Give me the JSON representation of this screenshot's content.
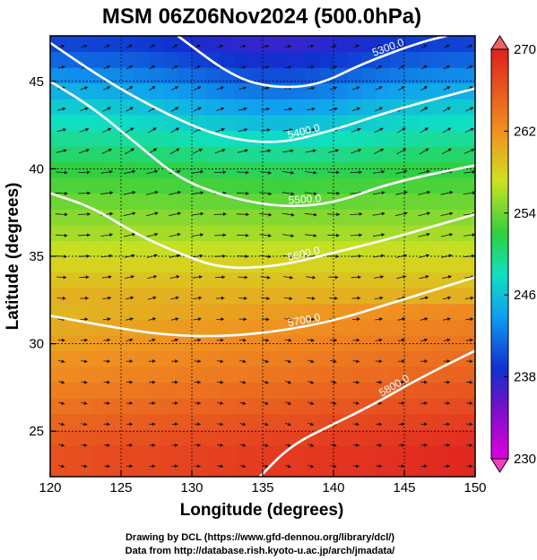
{
  "chart_data": {
    "type": "heatmap",
    "title": "MSM 06Z06Nov2024 (500.0hPa)",
    "xlabel": "Longitude (degrees)",
    "ylabel": "Latitude  (degrees)",
    "xlim": [
      120,
      150
    ],
    "ylim": [
      22.4,
      47.6
    ],
    "xticks": [
      "120",
      "125",
      "130",
      "135",
      "140",
      "145",
      "150"
    ],
    "yticks": [
      "25",
      "30",
      "35",
      "40",
      "45"
    ],
    "colorbar": {
      "range": [
        230,
        270
      ],
      "ticks": [
        "230",
        "238",
        "246",
        "254",
        "262",
        "270"
      ]
    },
    "temperature_field_K": {
      "note_levels_by_latitude": [
        {
          "lat": 47,
          "value": 240
        },
        {
          "lat": 44,
          "value": 246
        },
        {
          "lat": 40,
          "value": 252
        },
        {
          "lat": 36,
          "value": 256
        },
        {
          "lat": 32,
          "value": 261
        },
        {
          "lat": 28,
          "value": 264
        },
        {
          "lat": 24,
          "value": 268
        }
      ]
    },
    "contours_height_m": [
      {
        "label": "5300.0",
        "points": [
          [
            129,
            47.6
          ],
          [
            133,
            45.2
          ],
          [
            136,
            44.6
          ],
          [
            139,
            44.8
          ],
          [
            142,
            46.0
          ],
          [
            146,
            47.2
          ],
          [
            148,
            47.6
          ]
        ]
      },
      {
        "label": "5400.0",
        "points": [
          [
            120,
            47.2
          ],
          [
            124,
            45.0
          ],
          [
            128,
            43.2
          ],
          [
            132,
            41.8
          ],
          [
            136,
            41.4
          ],
          [
            140,
            42.2
          ],
          [
            144,
            43.3
          ],
          [
            150,
            44.6
          ]
        ]
      },
      {
        "label": "5500.0",
        "points": [
          [
            120,
            45.0
          ],
          [
            123,
            43.5
          ],
          [
            126,
            41.5
          ],
          [
            129,
            39.5
          ],
          [
            132,
            38.5
          ],
          [
            136,
            37.8
          ],
          [
            140,
            38.0
          ],
          [
            144,
            39.2
          ],
          [
            150,
            40.2
          ]
        ]
      },
      {
        "label": "5600.0",
        "points": [
          [
            120,
            38.6
          ],
          [
            123,
            37.8
          ],
          [
            126,
            36.3
          ],
          [
            129,
            35.2
          ],
          [
            132,
            34.3
          ],
          [
            136,
            34.4
          ],
          [
            140,
            35.2
          ],
          [
            144,
            36.0
          ],
          [
            150,
            37.4
          ]
        ]
      },
      {
        "label": "5700.0",
        "points": [
          [
            120,
            31.6
          ],
          [
            124,
            31.0
          ],
          [
            128,
            30.5
          ],
          [
            132,
            30.4
          ],
          [
            136,
            30.7
          ],
          [
            140,
            31.3
          ],
          [
            144,
            32.3
          ],
          [
            150,
            33.8
          ]
        ]
      },
      {
        "label": "5800.0",
        "points": [
          [
            134.8,
            22.4
          ],
          [
            137,
            24.2
          ],
          [
            140,
            25.4
          ],
          [
            143,
            26.6
          ],
          [
            146,
            28.0
          ],
          [
            150,
            29.6
          ]
        ]
      }
    ],
    "grid": true
  },
  "credits": {
    "line1": "Drawing by DCL (https://www.gfd-dennou.org/library/dcl/)",
    "line2": "Data from http://database.rish.kyoto-u.ac.jp/arch/jmadata/"
  }
}
